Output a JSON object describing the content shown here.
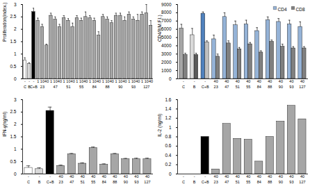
{
  "chart_data": [
    {
      "type": "bar",
      "y_label": "Proliferation(index.)",
      "categories": [
        "-",
        "-",
        "-",
        "1",
        "10",
        "40",
        "1",
        "10",
        "40",
        "1",
        "10",
        "40",
        "1",
        "10",
        "40",
        "1",
        "10",
        "40",
        "1",
        "10",
        "40",
        "1",
        "10",
        "40",
        "1",
        "10",
        "40",
        "1",
        "10",
        "40"
      ],
      "groups": [
        "C",
        "B",
        "C+B",
        "23",
        "47",
        "51",
        "55",
        "84",
        "88",
        "90",
        "93",
        "127"
      ],
      "group_sizes": [
        1,
        1,
        1,
        3,
        3,
        3,
        3,
        3,
        3,
        3,
        3,
        3
      ],
      "values": [
        0.75,
        0.6,
        2.7,
        2.35,
        2.1,
        1.35,
        2.55,
        2.4,
        2.1,
        2.45,
        2.35,
        2.1,
        2.45,
        2.35,
        2.5,
        2.45,
        2.35,
        1.75,
        2.5,
        2.4,
        2.25,
        2.55,
        2.55,
        2.35,
        2.6,
        2.4,
        2.35,
        2.6,
        2.65,
        2.15
      ],
      "errors": [
        0.1,
        0.05,
        0.15,
        0.1,
        0.1,
        0.05,
        0.1,
        0.1,
        0.1,
        0.1,
        0.08,
        0.15,
        0.1,
        0.1,
        0.2,
        0.1,
        0.1,
        0.15,
        0.1,
        0.1,
        0.1,
        0.1,
        0.1,
        0.15,
        0.1,
        0.1,
        0.25,
        0.1,
        0.35,
        0.2
      ],
      "colors": [
        "#ffffff",
        "#d9d9d9",
        "#000000",
        "#a6a6a6",
        "#a6a6a6",
        "#a6a6a6",
        "#a6a6a6",
        "#a6a6a6",
        "#a6a6a6",
        "#a6a6a6",
        "#a6a6a6",
        "#a6a6a6",
        "#a6a6a6",
        "#a6a6a6",
        "#a6a6a6",
        "#a6a6a6",
        "#a6a6a6",
        "#a6a6a6",
        "#a6a6a6",
        "#a6a6a6",
        "#a6a6a6",
        "#a6a6a6",
        "#a6a6a6",
        "#a6a6a6",
        "#a6a6a6",
        "#a6a6a6",
        "#a6a6a6",
        "#a6a6a6",
        "#a6a6a6",
        "#a6a6a6"
      ],
      "ylim": [
        0,
        3
      ],
      "yticks": [
        0,
        0.5,
        1,
        1.5,
        2,
        2.5,
        3
      ]
    },
    {
      "type": "bar",
      "y_label": "CD4/8(M.F.I.)",
      "categories": [
        "-",
        "-",
        "-",
        "40",
        "40",
        "40",
        "40",
        "40",
        "40",
        "40",
        "40",
        "40"
      ],
      "groups": [
        "C",
        "B",
        "C+B",
        "23",
        "47",
        "51",
        "55",
        "84",
        "88",
        "90",
        "93",
        "127"
      ],
      "group_sizes": [
        1,
        1,
        1,
        1,
        1,
        1,
        1,
        1,
        1,
        1,
        1,
        1
      ],
      "series": [
        {
          "name": "CD4",
          "color": "#95b3d7",
          "colors": [
            "#a6a6a6",
            "#d9d9d9",
            "#4f81bd",
            "#95b3d7",
            "#95b3d7",
            "#95b3d7",
            "#95b3d7",
            "#95b3d7",
            "#95b3d7",
            "#95b3d7",
            "#95b3d7",
            "#95b3d7"
          ],
          "values": [
            6100,
            5300,
            7900,
            4800,
            7500,
            6500,
            6600,
            5800,
            7100,
            6900,
            6600,
            6300
          ],
          "errors": [
            500,
            800,
            200,
            500,
            500,
            500,
            500,
            400,
            400,
            400,
            500,
            600
          ]
        },
        {
          "name": "CD8",
          "color": "#808080",
          "colors": [
            "#808080",
            "#595959",
            "#bfbfbf",
            "#808080",
            "#808080",
            "#808080",
            "#808080",
            "#808080",
            "#808080",
            "#808080",
            "#808080",
            "#808080"
          ],
          "values": [
            2900,
            2900,
            4400,
            2700,
            4300,
            3600,
            4200,
            3200,
            4500,
            3900,
            3700,
            3700
          ],
          "errors": [
            200,
            200,
            200,
            300,
            300,
            200,
            200,
            200,
            200,
            300,
            200,
            200
          ]
        }
      ],
      "legend": "top-right",
      "ylim": [
        0,
        9000
      ],
      "yticks": [
        0,
        1000,
        2000,
        3000,
        4000,
        5000,
        6000,
        7000,
        8000,
        9000
      ]
    },
    {
      "type": "bar",
      "y_label": "IFN-γ(ng/ml)",
      "categories": [
        "-",
        "-",
        "-",
        "40",
        "40",
        "40",
        "40",
        "40",
        "40",
        "40",
        "40",
        "40"
      ],
      "groups": [
        "C",
        "B",
        "C+B",
        "23",
        "47",
        "51",
        "55",
        "84",
        "88",
        "90",
        "93",
        "127"
      ],
      "group_sizes": [
        1,
        1,
        1,
        1,
        1,
        1,
        1,
        1,
        1,
        1,
        1,
        1
      ],
      "values": [
        0.25,
        0.2,
        2.55,
        0.33,
        0.8,
        0.42,
        1.05,
        0.38,
        0.8,
        0.6,
        0.6,
        0.6
      ],
      "errors": [
        0.08,
        0.05,
        0.15,
        0.03,
        0.03,
        0.03,
        0.04,
        0.03,
        0.03,
        0.03,
        0.04,
        0.04
      ],
      "colors": [
        "#ffffff",
        "#d9d9d9",
        "#000000",
        "#a6a6a6",
        "#a6a6a6",
        "#a6a6a6",
        "#a6a6a6",
        "#a6a6a6",
        "#a6a6a6",
        "#a6a6a6",
        "#a6a6a6",
        "#a6a6a6"
      ],
      "ylim": [
        0,
        3
      ],
      "yticks": [
        0,
        0.5,
        1,
        1.5,
        2,
        2.5,
        3
      ]
    },
    {
      "type": "bar",
      "y_label": "IL-2 (ng/ml)",
      "categories": [
        "-",
        "-",
        "-",
        "40",
        "40",
        "40",
        "40",
        "40",
        "40",
        "40",
        "40",
        "40"
      ],
      "groups": [
        "C",
        "B",
        "C+B",
        "23",
        "47",
        "51",
        "55",
        "84",
        "88",
        "90",
        "93",
        "127"
      ],
      "group_sizes": [
        1,
        1,
        1,
        1,
        1,
        1,
        1,
        1,
        1,
        1,
        1,
        1
      ],
      "values": [
        0,
        0,
        0.8,
        0.1,
        1.08,
        0.76,
        0.74,
        0.27,
        0.8,
        1.13,
        1.47,
        1.18
      ],
      "colors": [
        "#ffffff",
        "#d9d9d9",
        "#000000",
        "#a6a6a6",
        "#a6a6a6",
        "#a6a6a6",
        "#a6a6a6",
        "#a6a6a6",
        "#a6a6a6",
        "#a6a6a6",
        "#a6a6a6",
        "#a6a6a6"
      ],
      "ylim": [
        0,
        1.6
      ],
      "yticks": [
        0,
        0.2,
        0.4,
        0.6,
        0.8,
        1,
        1.2,
        1.4,
        1.6
      ]
    }
  ]
}
